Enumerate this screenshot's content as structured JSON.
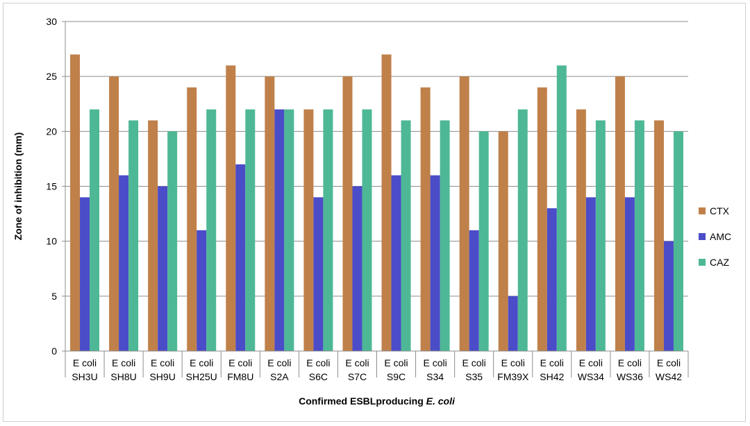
{
  "chart_data": {
    "type": "bar",
    "title": "",
    "xlabel_prefix": "Confirmed ESBLproducing ",
    "xlabel_italic": "E. coli",
    "ylabel": "Zone of inhibition (mm)",
    "ylim": [
      0,
      30
    ],
    "yticks": [
      0,
      5,
      10,
      15,
      20,
      25,
      30
    ],
    "grid": true,
    "legend_position": "right",
    "categories": [
      [
        "E coli",
        "SH3U"
      ],
      [
        "E coli",
        "SH8U"
      ],
      [
        "E coli",
        "SH9U"
      ],
      [
        "E coli",
        "SH25U"
      ],
      [
        "E coli",
        "FM8U"
      ],
      [
        "E coli",
        "S2A"
      ],
      [
        "E coli",
        "S6C"
      ],
      [
        "E coli",
        "S7C"
      ],
      [
        "E coli",
        "S9C"
      ],
      [
        "E coli",
        "S34"
      ],
      [
        "E coli",
        "S35"
      ],
      [
        "E coli",
        "FM39X"
      ],
      [
        "E coli",
        "SH42"
      ],
      [
        "E coli",
        "WS34"
      ],
      [
        "E coli",
        "WS36"
      ],
      [
        "E coli",
        "WS42"
      ]
    ],
    "series": [
      {
        "name": "CTX",
        "color": "#C0804A",
        "values": [
          27,
          25,
          21,
          24,
          26,
          25,
          22,
          25,
          27,
          24,
          25,
          20,
          24,
          22,
          25,
          21
        ]
      },
      {
        "name": "AMC",
        "color": "#4B4CC8",
        "values": [
          14,
          16,
          15,
          11,
          17,
          22,
          14,
          15,
          16,
          16,
          11,
          5,
          13,
          14,
          14,
          10
        ]
      },
      {
        "name": "CAZ",
        "color": "#4EB896",
        "values": [
          22,
          21,
          20,
          22,
          22,
          22,
          22,
          22,
          21,
          21,
          20,
          22,
          26,
          21,
          21,
          20
        ]
      }
    ]
  }
}
